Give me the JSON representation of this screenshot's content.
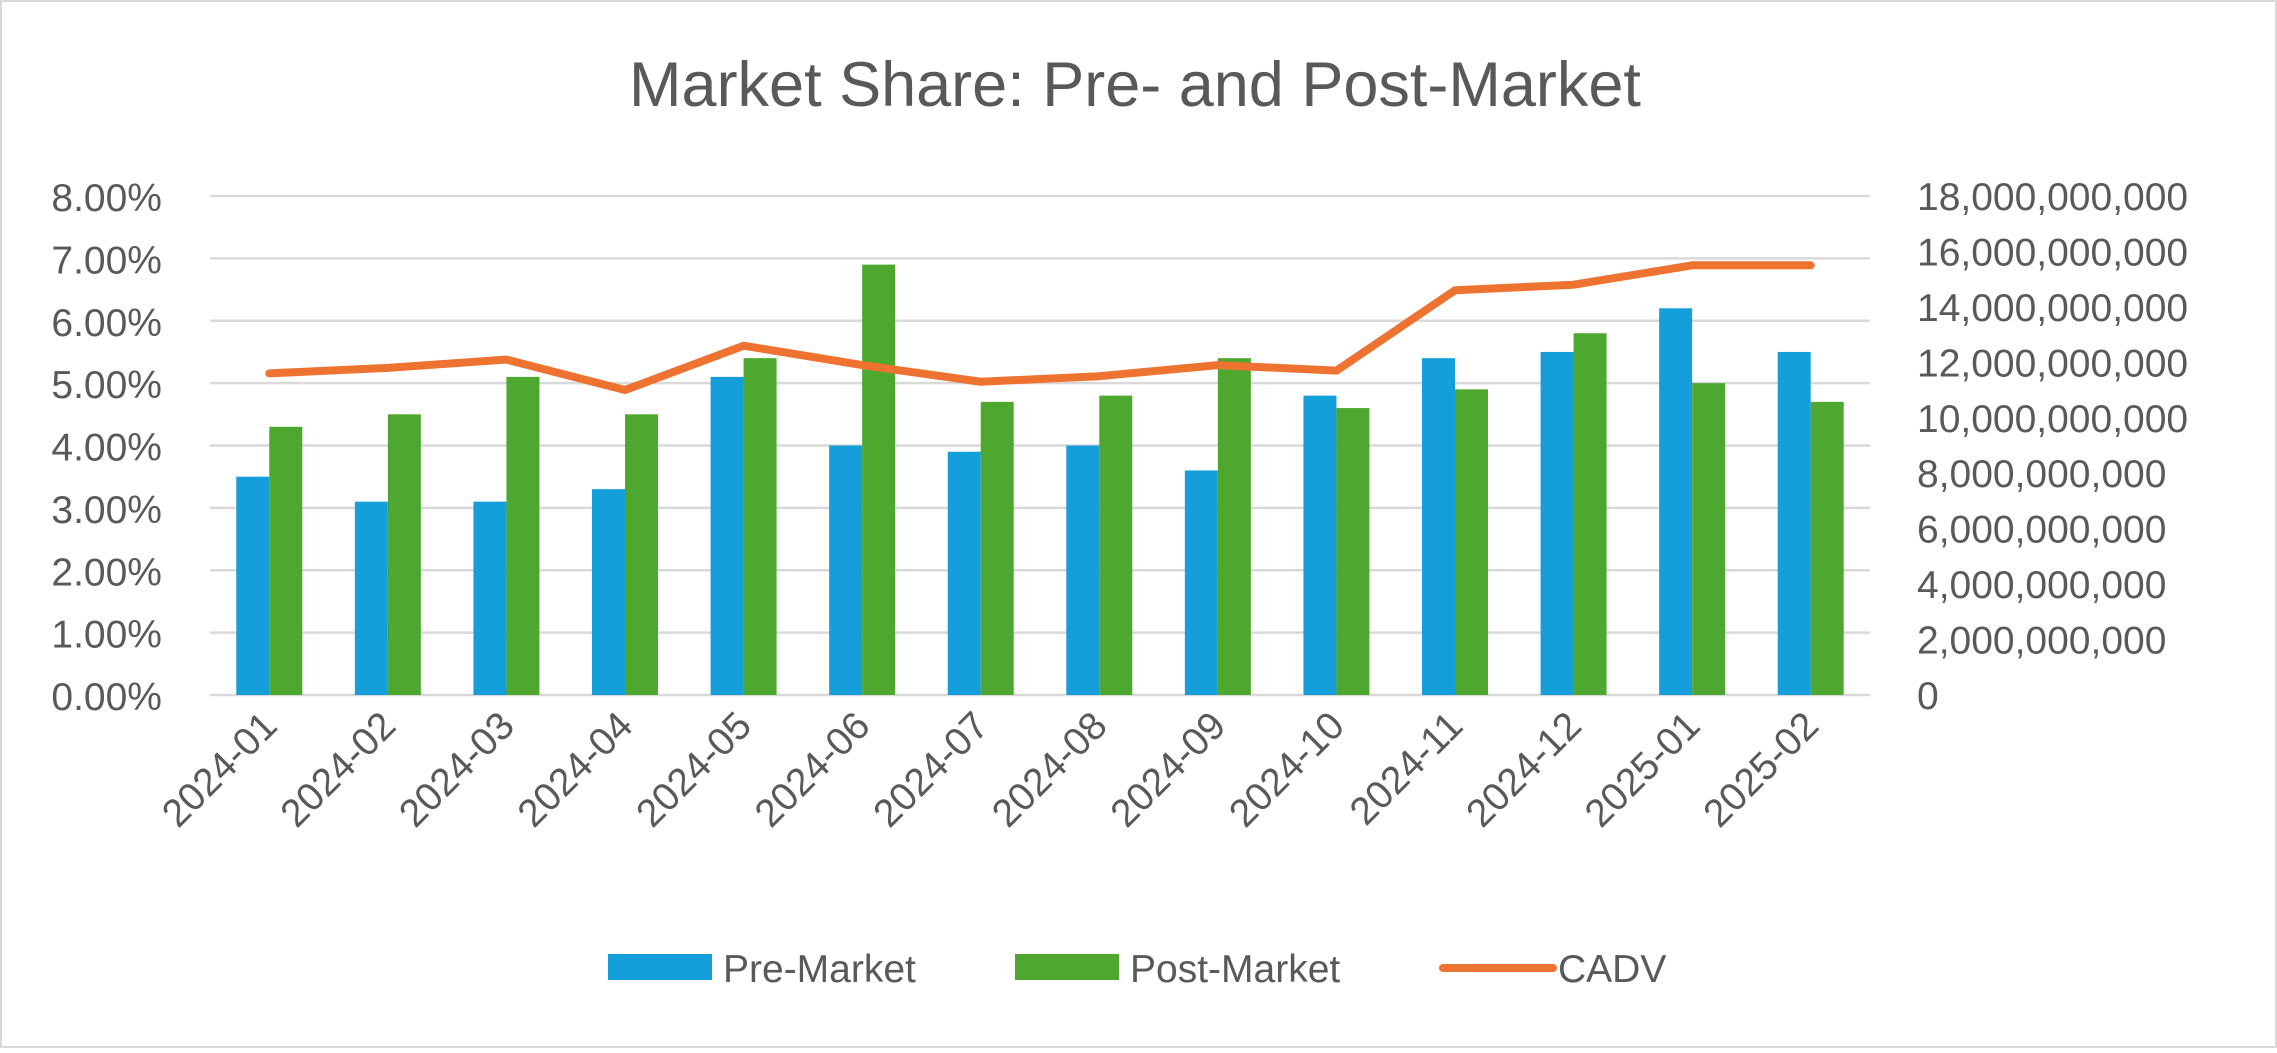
{
  "chart_data": {
    "type": "bar",
    "title": "Market Share: Pre- and Post-Market",
    "xlabel": "",
    "ylabel": "",
    "categories": [
      "2024-01",
      "2024-02",
      "2024-03",
      "2024-04",
      "2024-05",
      "2024-06",
      "2024-07",
      "2024-08",
      "2024-09",
      "2024-10",
      "2024-11",
      "2024-12",
      "2025-01",
      "2025-02"
    ],
    "series": [
      {
        "name": "Pre-Market",
        "kind": "bar",
        "axis": "left",
        "color": "#159fda",
        "values": [
          0.035,
          0.031,
          0.031,
          0.033,
          0.051,
          0.04,
          0.039,
          0.04,
          0.036,
          0.048,
          0.054,
          0.055,
          0.062,
          0.055
        ]
      },
      {
        "name": "Post-Market",
        "kind": "bar",
        "axis": "left",
        "color": "#4ea72e",
        "values": [
          0.043,
          0.045,
          0.051,
          0.045,
          0.054,
          0.069,
          0.047,
          0.048,
          0.054,
          0.046,
          0.049,
          0.058,
          0.05,
          0.047
        ]
      },
      {
        "name": "CADV",
        "kind": "line",
        "axis": "right",
        "color": "#ee7230",
        "values": [
          11600000000,
          11800000000,
          12100000000,
          11000000000,
          12600000000,
          11900000000,
          11300000000,
          11500000000,
          11900000000,
          11700000000,
          14600000000,
          14800000000,
          15500000000,
          15500000000
        ]
      }
    ],
    "y_left": {
      "ylim": [
        0,
        0.08
      ],
      "tick_values": [
        0,
        0.01,
        0.02,
        0.03,
        0.04,
        0.05,
        0.06,
        0.07,
        0.08
      ],
      "tick_labels": [
        "0.00%",
        "1.00%",
        "2.00%",
        "3.00%",
        "4.00%",
        "5.00%",
        "6.00%",
        "7.00%",
        "8.00%"
      ]
    },
    "y_right": {
      "ylim": [
        0,
        18000000000
      ],
      "tick_values": [
        0,
        2000000000,
        4000000000,
        6000000000,
        8000000000,
        10000000000,
        12000000000,
        14000000000,
        16000000000,
        18000000000
      ],
      "tick_labels": [
        "0",
        "2,000,000,000",
        "4,000,000,000",
        "6,000,000,000",
        "8,000,000,000",
        "10,000,000,000",
        "12,000,000,000",
        "14,000,000,000",
        "16,000,000,000",
        "18,000,000,000"
      ]
    },
    "grid": true,
    "legend_position": "bottom",
    "legend": [
      "Pre-Market",
      "Post-Market",
      "CADV"
    ]
  },
  "colors": {
    "gridline": "#d9d9d9",
    "axis_text": "#595959",
    "border": "#d9d9d9"
  }
}
